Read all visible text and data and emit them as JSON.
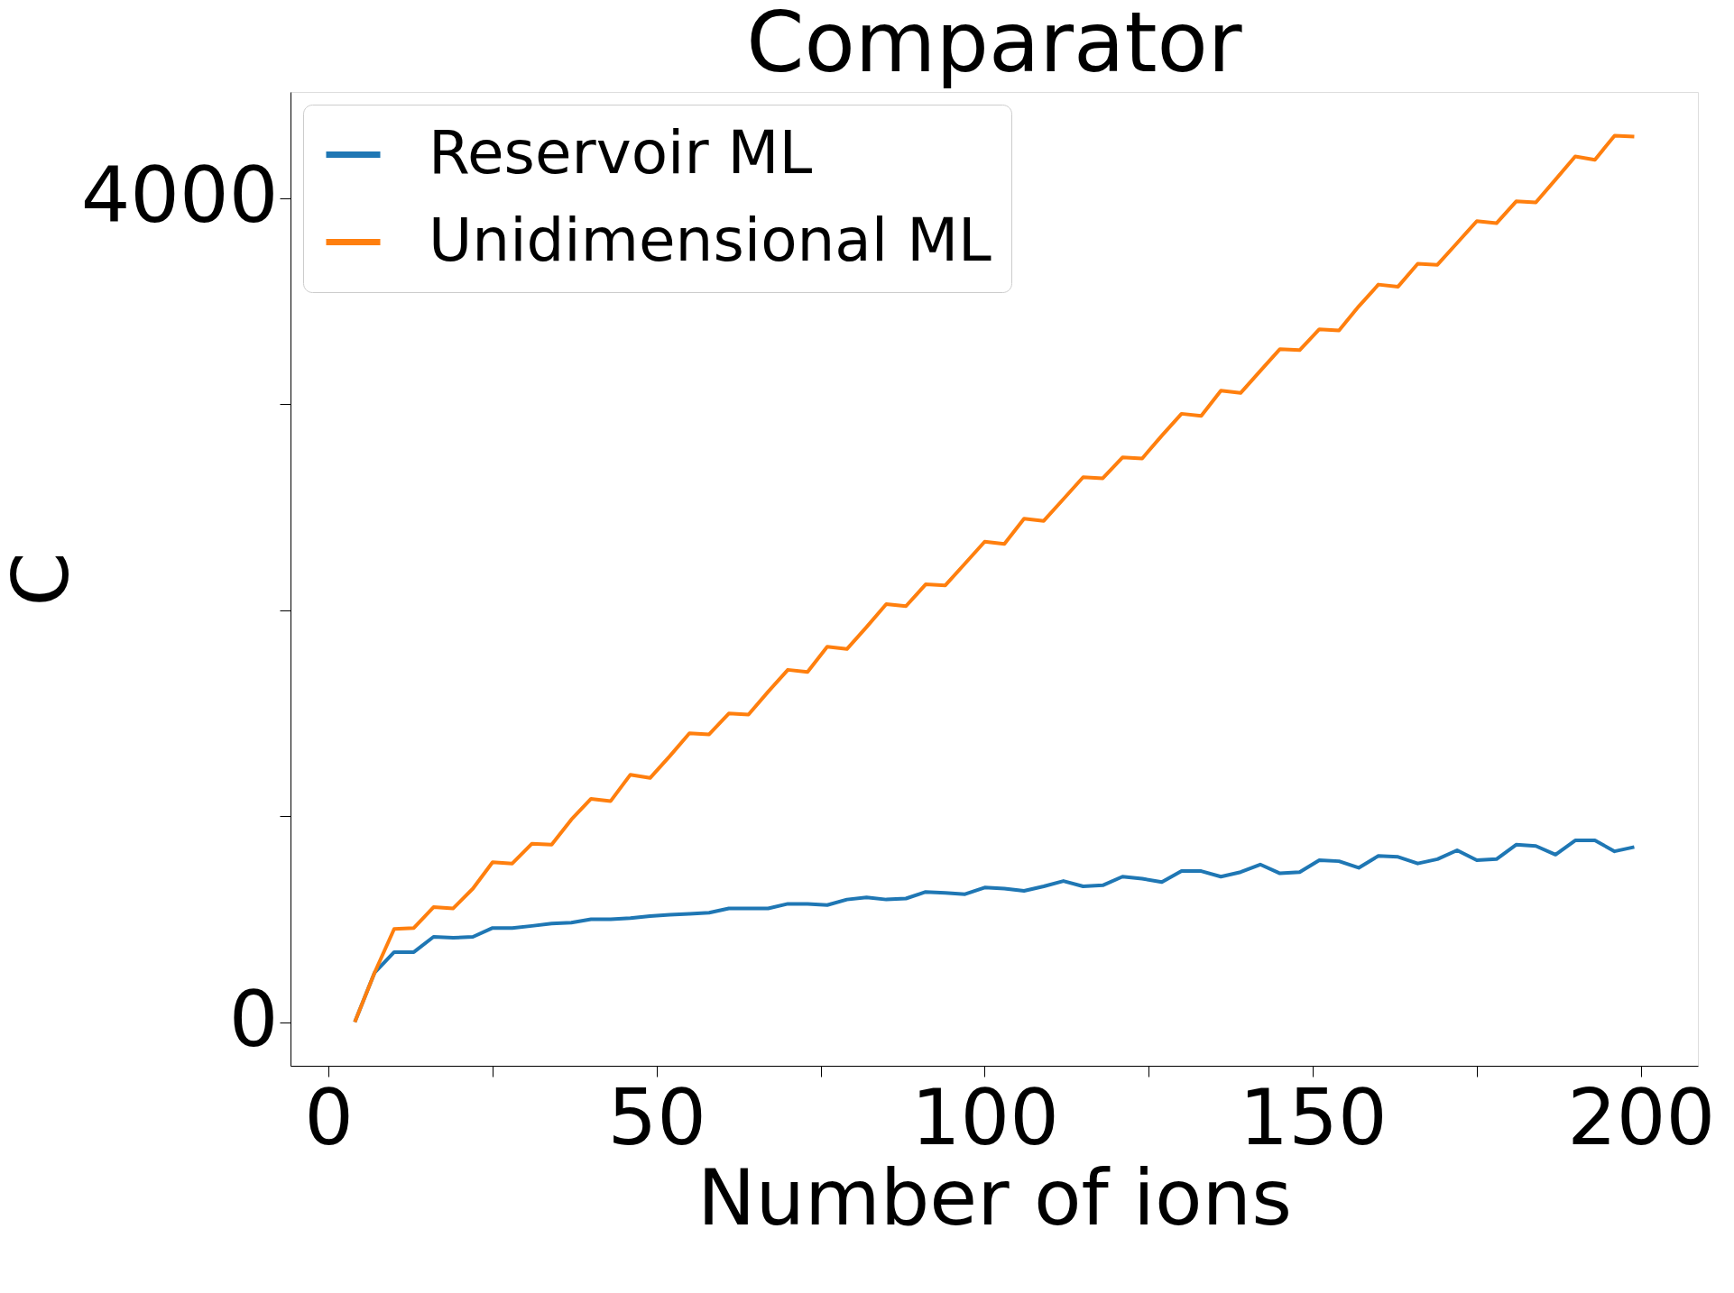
{
  "chart_data": {
    "type": "line",
    "title": "Comparator",
    "xlabel": "Number of ions",
    "ylabel": "C",
    "xlim": [
      -5.8,
      208.7
    ],
    "ylim": [
      -212,
      4515
    ],
    "xticks": [
      0,
      {
        "value": 25,
        "label": null
      },
      50,
      {
        "value": 75,
        "label": null
      },
      100,
      {
        "value": 125,
        "label": null
      },
      150,
      {
        "value": 175,
        "label": null
      },
      200
    ],
    "yticks": [
      0,
      {
        "value": 1000,
        "label": null
      },
      {
        "value": 2000,
        "label": null
      },
      {
        "value": 3000,
        "label": null
      },
      4000
    ],
    "grid": false,
    "legend": "top left",
    "marker": "none",
    "line_style": "solid",
    "x": [
      4,
      7,
      10,
      13,
      16,
      19,
      22,
      25,
      28,
      31,
      34,
      37,
      40,
      43,
      46,
      49,
      52,
      55,
      58,
      61,
      64,
      67,
      70,
      73,
      76,
      79,
      82,
      85,
      88,
      91,
      94,
      97,
      100,
      103,
      106,
      109,
      112,
      115,
      118,
      121,
      124,
      127,
      130,
      133,
      136,
      139,
      142,
      145,
      148,
      151,
      154,
      157,
      160,
      163,
      166,
      169,
      172,
      175,
      178,
      181,
      184,
      187,
      190,
      193,
      196,
      199
    ],
    "series": [
      {
        "name": "Reservoir ML",
        "color": "#1f77b4",
        "values": [
          0,
          239,
          340,
          340,
          414,
          409,
          414,
          457,
          457,
          467,
          478,
          483,
          499,
          499,
          505,
          515,
          521,
          526,
          531,
          552,
          552,
          552,
          574,
          574,
          568,
          595,
          605,
          595,
          600,
          632,
          627,
          621,
          653,
          648,
          637,
          659,
          685,
          659,
          664,
          706,
          696,
          680,
          733,
          733,
          706,
          728,
          765,
          722,
          728,
          786,
          781,
          749,
          807,
          802,
          770,
          791,
          834,
          786,
          791,
          861,
          855,
          813,
          882,
          882,
          829,
          850
        ]
      },
      {
        "name": "Unidimensional ML",
        "color": "#ff7f0e",
        "values": [
          0,
          239,
          452,
          457,
          558,
          552,
          648,
          776,
          770,
          866,
          861,
          983,
          1084,
          1073,
          1201,
          1185,
          1291,
          1402,
          1397,
          1498,
          1493,
          1604,
          1710,
          1700,
          1822,
          1811,
          1918,
          2029,
          2019,
          2125,
          2120,
          2226,
          2332,
          2321,
          2444,
          2433,
          2539,
          2645,
          2640,
          2741,
          2736,
          2847,
          2953,
          2943,
          3065,
          3054,
          3161,
          3267,
          3262,
          3363,
          3357,
          3474,
          3580,
          3570,
          3681,
          3676,
          3782,
          3888,
          3878,
          3984,
          3979,
          4090,
          4202,
          4186,
          4303,
          4298
        ]
      }
    ]
  }
}
